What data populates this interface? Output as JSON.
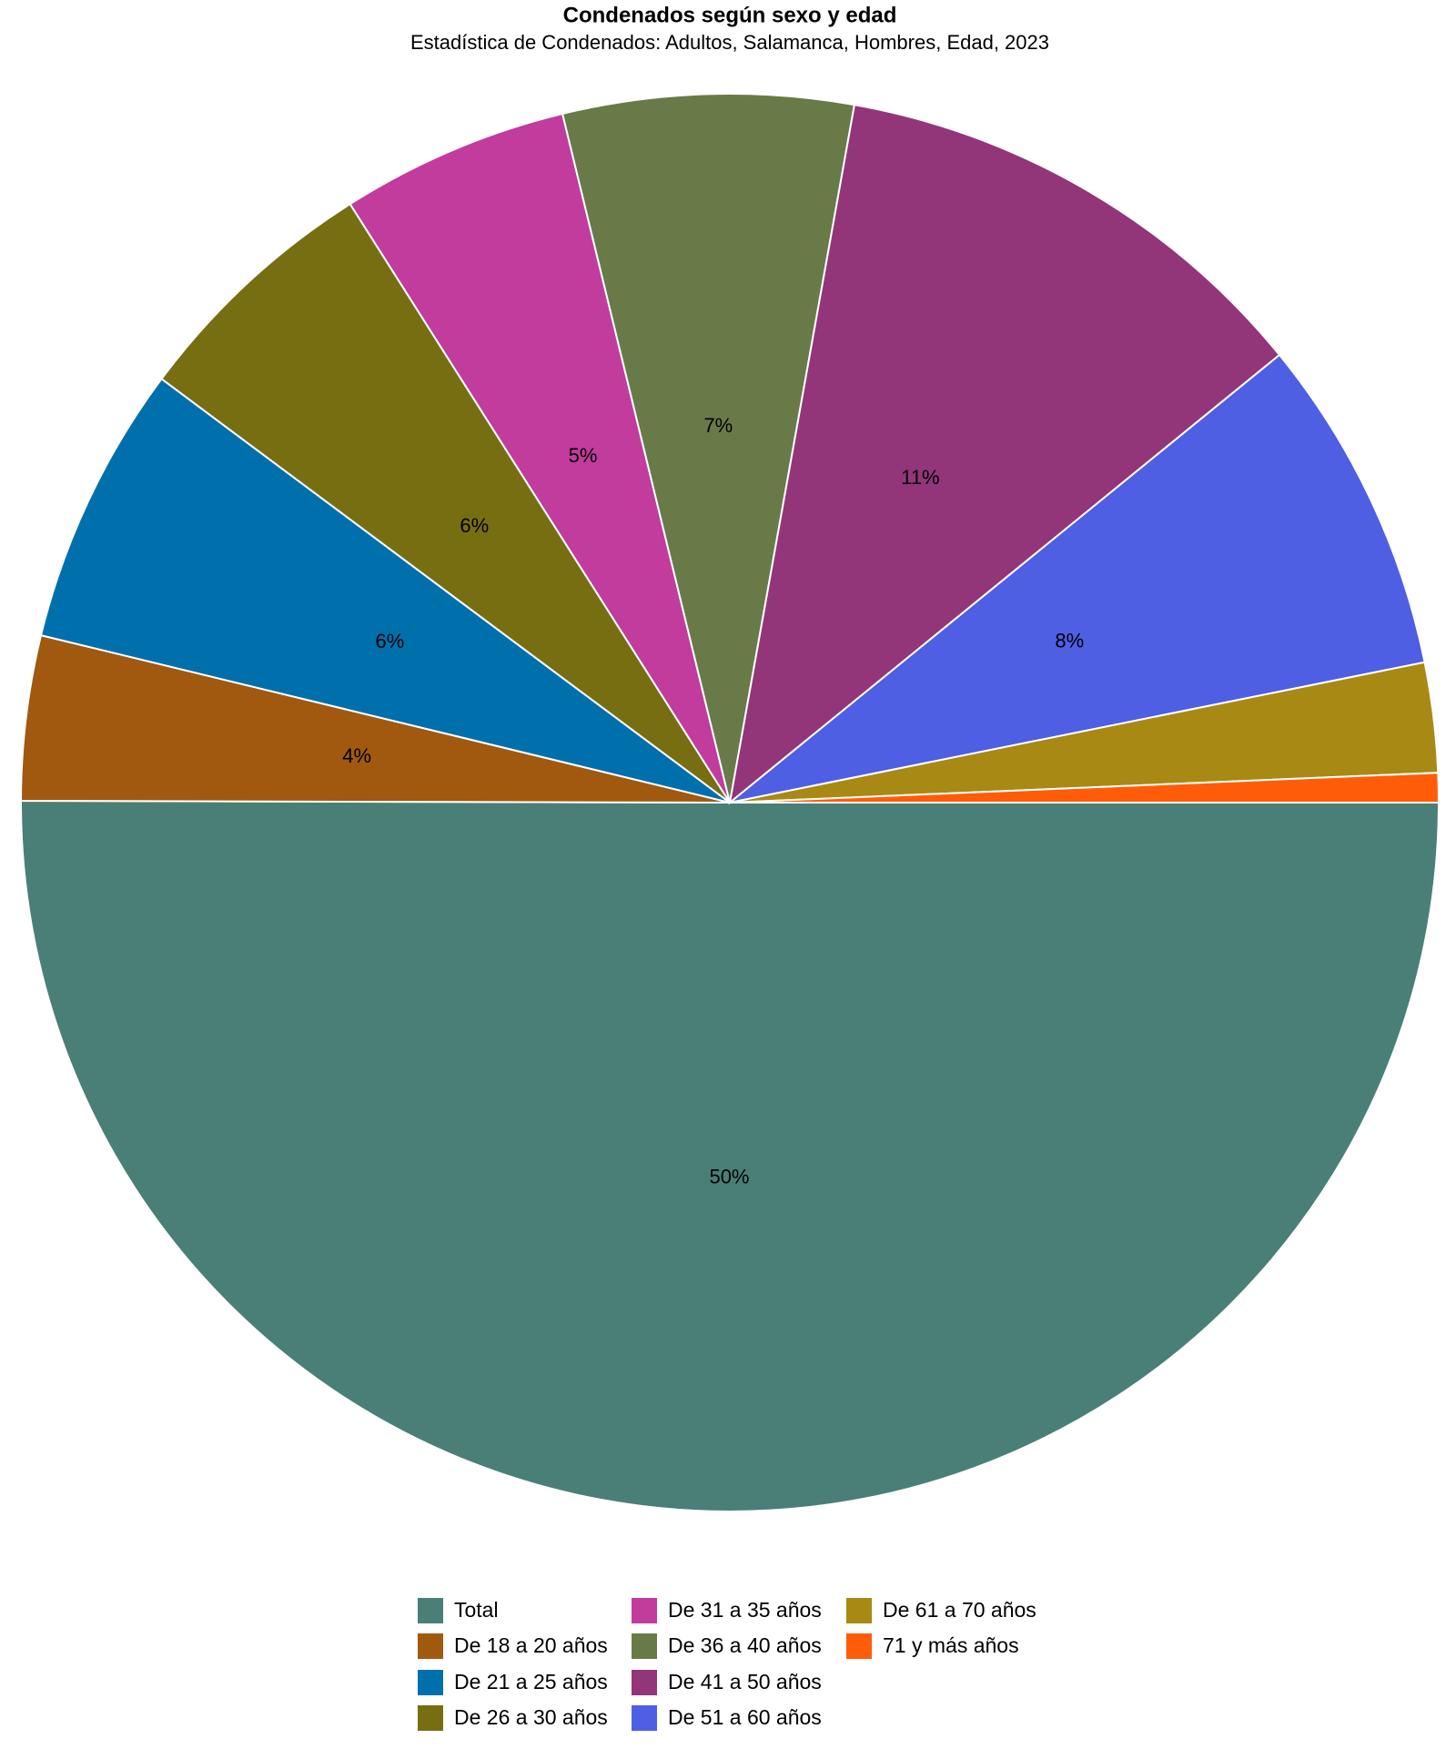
{
  "chart_data": {
    "type": "pie",
    "title": "Condenados según sexo y edad",
    "subtitle": "Estadística de Condenados: Adultos, Salamanca, Hombres, Edad, 2023",
    "categories": [
      "Total",
      "De 18 a 20 años",
      "De 21 a 25 años",
      "De 26 a 30 años",
      "De 31 a 35 años",
      "De 36 a 40 años",
      "De 41 a 50 años",
      "De 51 a 60 años",
      "De 61 a 70 años",
      "71 y más años"
    ],
    "values": [
      50,
      3.75,
      6.4,
      5.8,
      5.2,
      6.6,
      11.3,
      7.7,
      2.5,
      0.67
    ],
    "value_labels": [
      "50%",
      "4%",
      "6%",
      "6%",
      "5%",
      "7%",
      "11%",
      "8%",
      null,
      null
    ],
    "colors": [
      "#4a7f78",
      "#a0590f",
      "#0070ad",
      "#776e12",
      "#c13c9d",
      "#687a48",
      "#923679",
      "#4e5fe3",
      "#a88913",
      "#ff5c0a"
    ]
  }
}
